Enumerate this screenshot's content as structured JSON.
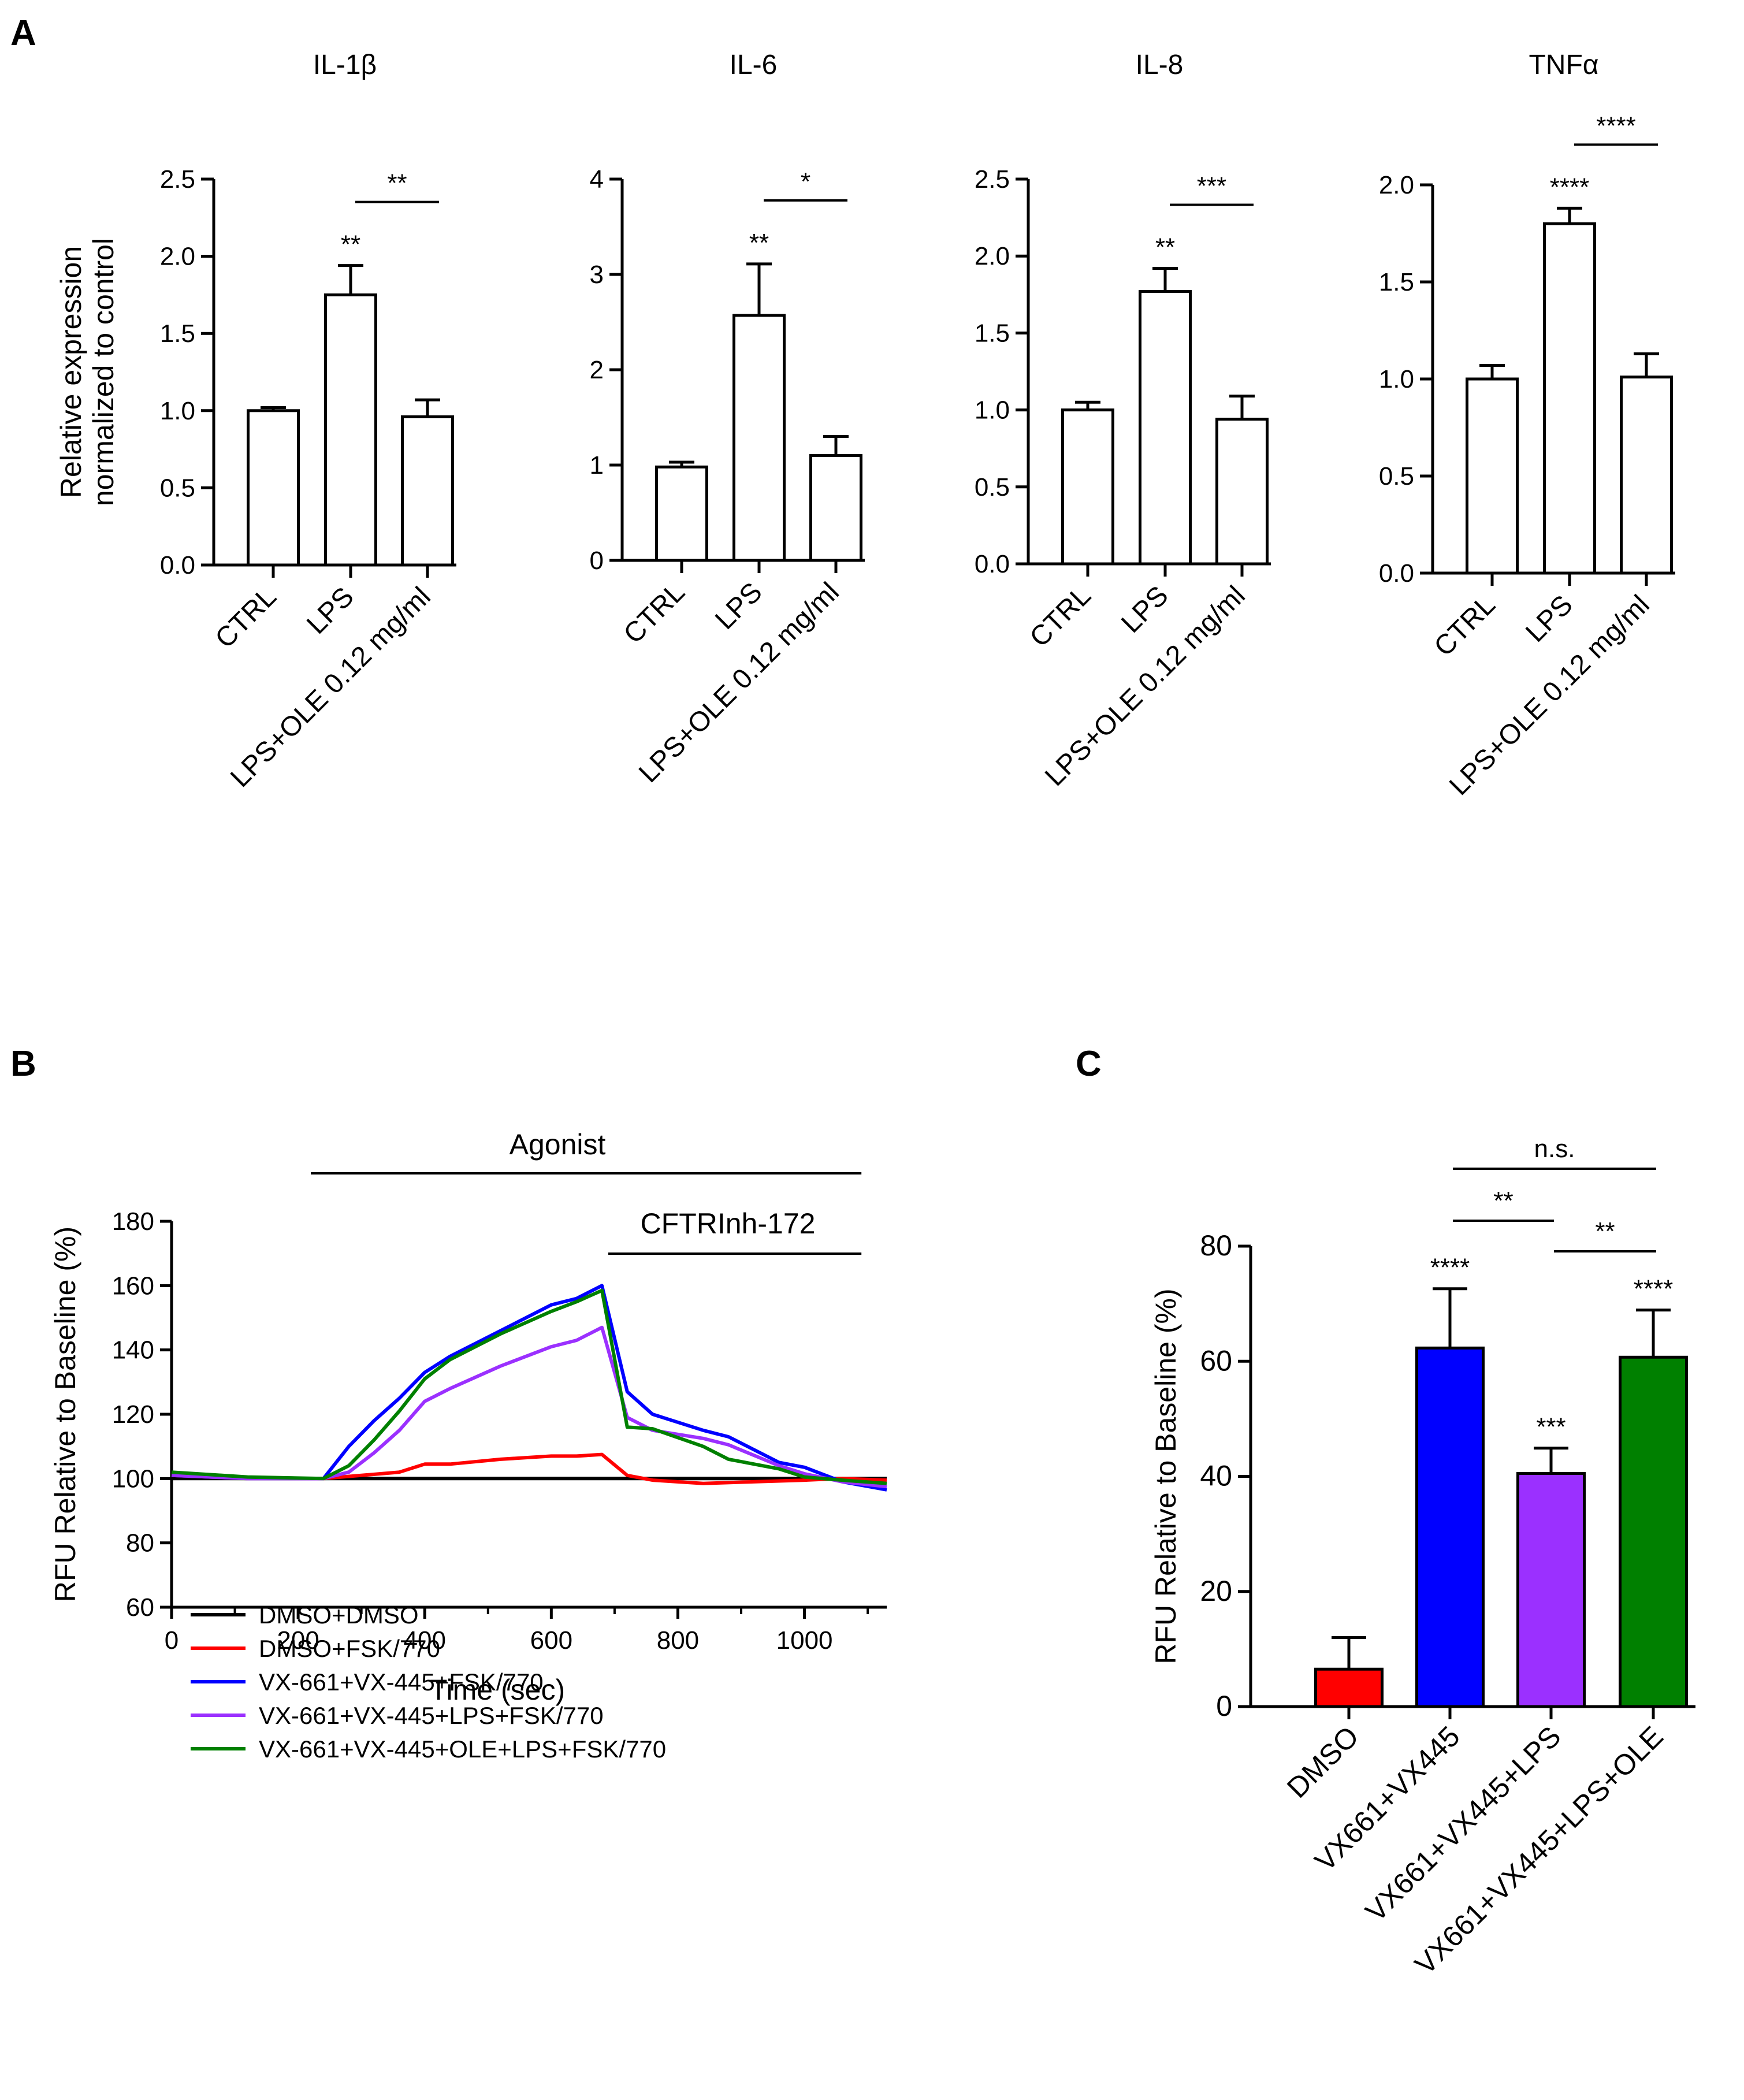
{
  "panels": {
    "a": "A",
    "b": "B",
    "c": "C"
  },
  "chart_data": [
    {
      "type": "bar",
      "panel": "A",
      "title": "IL-1β",
      "ylabel": "Relative expression\nnormalized to control",
      "categories": [
        "CTRL",
        "LPS",
        "LPS+OLE 0.12 mg/ml"
      ],
      "values": [
        1.0,
        1.75,
        0.96
      ],
      "errors": [
        0.02,
        0.19,
        0.11
      ],
      "ylim": [
        0,
        2.5
      ],
      "yticks": [
        "0.0",
        "0.5",
        "1.0",
        "1.5",
        "2.0",
        "2.5"
      ],
      "bar_labels": [
        "",
        "**",
        ""
      ],
      "bracket": {
        "from": 1,
        "to": 2,
        "label": "**"
      }
    },
    {
      "type": "bar",
      "panel": "A",
      "title": "IL-6",
      "ylabel": "",
      "categories": [
        "CTRL",
        "LPS",
        "LPS+OLE 0.12 mg/ml"
      ],
      "values": [
        0.98,
        2.57,
        1.1
      ],
      "errors": [
        0.05,
        0.54,
        0.2
      ],
      "ylim": [
        0,
        4
      ],
      "yticks": [
        "0",
        "1",
        "2",
        "3",
        "4"
      ],
      "bar_labels": [
        "",
        "**",
        ""
      ],
      "bracket": {
        "from": 1,
        "to": 2,
        "label": "*"
      }
    },
    {
      "type": "bar",
      "panel": "A",
      "title": "IL-8",
      "ylabel": "",
      "categories": [
        "CTRL",
        "LPS",
        "LPS+OLE 0.12 mg/ml"
      ],
      "values": [
        1.0,
        1.77,
        0.94
      ],
      "errors": [
        0.05,
        0.15,
        0.15
      ],
      "ylim": [
        0,
        2.5
      ],
      "yticks": [
        "0.0",
        "0.5",
        "1.0",
        "1.5",
        "2.0",
        "2.5"
      ],
      "bar_labels": [
        "",
        "**",
        ""
      ],
      "bracket": {
        "from": 1,
        "to": 2,
        "label": "***"
      }
    },
    {
      "type": "bar",
      "panel": "A",
      "title": "TNFα",
      "ylabel": "",
      "categories": [
        "CTRL",
        "LPS",
        "LPS+OLE 0.12 mg/ml"
      ],
      "values": [
        1.0,
        1.8,
        1.01
      ],
      "errors": [
        0.07,
        0.08,
        0.12
      ],
      "ylim": [
        0,
        2.0
      ],
      "yticks": [
        "0.0",
        "0.5",
        "1.0",
        "1.5",
        "2.0"
      ],
      "bar_labels": [
        "",
        "****",
        ""
      ],
      "bracket": {
        "from": 1,
        "to": 2,
        "label": "****"
      }
    },
    {
      "type": "line",
      "panel": "B",
      "xlabel": "Time (sec)",
      "ylabel": "RFU Relative to Baseline (%)",
      "xlim": [
        0,
        1130
      ],
      "ylim": [
        60,
        180
      ],
      "xticks": [
        0,
        200,
        400,
        600,
        800,
        1000
      ],
      "yticks": [
        60,
        80,
        100,
        120,
        140,
        160,
        180
      ],
      "annotations": [
        {
          "label": "Agonist",
          "x_start": 220,
          "x_end": 1090
        },
        {
          "label": "CFTRInh-172",
          "x_start": 690,
          "x_end": 1090
        }
      ],
      "series": [
        {
          "name": "DMSO+DMSO",
          "color": "#000000",
          "x": [
            0,
            1130
          ],
          "y": [
            100,
            100
          ]
        },
        {
          "name": "DMSO+FSK/770",
          "color": "#ff0000",
          "x": [
            0,
            120,
            240,
            300,
            360,
            400,
            440,
            520,
            600,
            640,
            680,
            720,
            760,
            840,
            920,
            1000,
            1060,
            1130
          ],
          "y": [
            101,
            100,
            100,
            101,
            102,
            104.5,
            104.5,
            106,
            107,
            107,
            107.5,
            101,
            99.5,
            98.5,
            99,
            99.5,
            100,
            99.5
          ]
        },
        {
          "name": "VX-661+VX-445+FSK/770",
          "color": "#0000ff",
          "x": [
            0,
            120,
            240,
            280,
            320,
            360,
            400,
            440,
            520,
            600,
            640,
            680,
            720,
            760,
            840,
            880,
            960,
            1000,
            1060,
            1130
          ],
          "y": [
            101,
            100,
            100,
            110,
            118,
            125,
            133,
            138,
            146,
            154,
            156,
            160,
            127,
            120,
            115,
            113,
            105,
            103.5,
            99,
            96.5
          ]
        },
        {
          "name": "VX-661+VX-445+LPS+FSK/770",
          "color": "#9b30ff",
          "x": [
            0,
            120,
            240,
            280,
            320,
            360,
            400,
            440,
            520,
            600,
            640,
            680,
            720,
            760,
            840,
            880,
            960,
            1000,
            1060,
            1130
          ],
          "y": [
            101,
            100,
            100,
            102,
            108,
            115,
            124,
            128,
            135,
            141,
            143,
            147,
            119,
            115,
            112.5,
            110.5,
            104,
            101.5,
            99,
            97.5
          ]
        },
        {
          "name": "VX-661+VX-445+OLE+LPS+FSK/770",
          "color": "#008000",
          "x": [
            0,
            120,
            240,
            280,
            320,
            360,
            400,
            440,
            520,
            600,
            640,
            680,
            720,
            760,
            840,
            880,
            960,
            1000,
            1060,
            1130
          ],
          "y": [
            102,
            100.5,
            100,
            104,
            112,
            121,
            131,
            137,
            145,
            152,
            155,
            158.5,
            116,
            115.5,
            110,
            106,
            103,
            100.5,
            99.5,
            98.5
          ]
        }
      ]
    },
    {
      "type": "bar",
      "panel": "C",
      "ylabel": "RFU Relative to Baseline (%)",
      "categories": [
        "DMSO",
        "VX661+VX445",
        "VX661+VX445+LPS",
        "VX661+VX445+LPS+OLE"
      ],
      "values": [
        6.5,
        62.3,
        40.5,
        60.7
      ],
      "errors": [
        5.5,
        10.3,
        4.4,
        8.2
      ],
      "colors": [
        "#ff0000",
        "#0000ff",
        "#9b30ff",
        "#008000"
      ],
      "ylim": [
        0,
        80
      ],
      "yticks": [
        "0",
        "20",
        "40",
        "60",
        "80"
      ],
      "bar_labels": [
        "",
        "****",
        "***",
        "****"
      ],
      "brackets": [
        {
          "from": 1,
          "to": 2,
          "label": "**"
        },
        {
          "from": 2,
          "to": 3,
          "label": "**"
        },
        {
          "from": 1,
          "to": 3,
          "label": "n.s."
        }
      ]
    }
  ]
}
